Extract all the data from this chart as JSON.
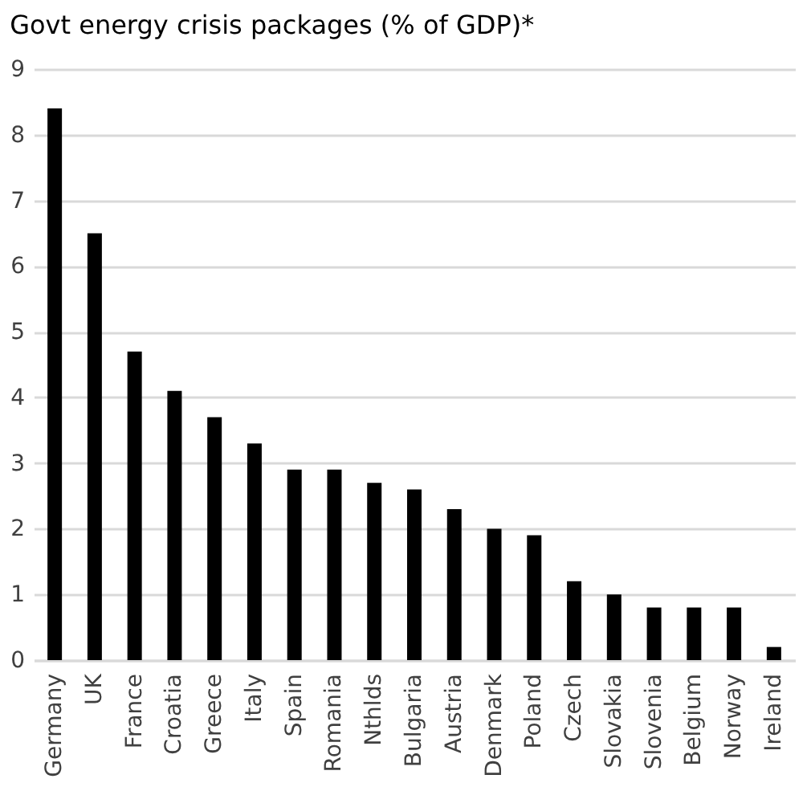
{
  "chart_data": {
    "type": "bar",
    "title": "Govt energy crisis packages (% of GDP)*",
    "categories": [
      "Germany",
      "UK",
      "France",
      "Croatia",
      "Greece",
      "Italy",
      "Spain",
      "Romania",
      "Nthlds",
      "Bulgaria",
      "Austria",
      "Denmark",
      "Poland",
      "Czech",
      "Slovakia",
      "Slovenia",
      "Belgium",
      "Norway",
      "Ireland"
    ],
    "values": [
      8.4,
      6.5,
      4.7,
      4.1,
      3.7,
      3.3,
      2.9,
      2.9,
      2.7,
      2.6,
      2.3,
      2.0,
      1.9,
      1.2,
      1.0,
      0.8,
      0.8,
      0.8,
      0.2
    ],
    "color": "#000000",
    "ylim": [
      0,
      9
    ],
    "yticks": [
      0,
      1,
      2,
      3,
      4,
      5,
      6,
      7,
      8,
      9
    ],
    "grid": true
  }
}
